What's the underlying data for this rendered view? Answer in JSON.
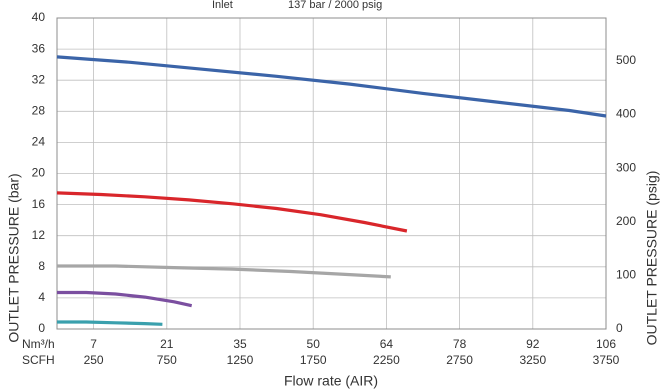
{
  "header": {
    "inlet_label": "Inlet",
    "inlet_value": "137 bar / 2000 psig"
  },
  "chart_data": {
    "type": "line",
    "title": "",
    "xlabel": "Flow rate (AIR)",
    "ylabel_left": "OUTLET PRESSURE (bar)",
    "ylabel_right": "OUTLET PRESSURE (psig)",
    "grid": true,
    "x_unit_labels": [
      "Nm³/h",
      "SCFH"
    ],
    "x_ticks_nm3h": [
      "7",
      "21",
      "35",
      "50",
      "64",
      "78",
      "92",
      "106"
    ],
    "x_ticks_scfh": [
      "250",
      "750",
      "1250",
      "1750",
      "2250",
      "2750",
      "3250",
      "3750"
    ],
    "xlim": [
      0,
      3750
    ],
    "ylim_left": [
      0,
      40
    ],
    "y_ticks_left": [
      0,
      4,
      8,
      12,
      16,
      20,
      24,
      28,
      32,
      36,
      40
    ],
    "ylim_right_psig": [
      0,
      580
    ],
    "y_ticks_right": [
      0,
      100,
      200,
      300,
      400,
      500
    ],
    "series": [
      {
        "color": "#3b64a8",
        "x": [
          0,
          500,
          1000,
          1500,
          2000,
          2500,
          3000,
          3500,
          3750
        ],
        "values": [
          35.0,
          34.3,
          33.4,
          32.5,
          31.5,
          30.3,
          29.2,
          28.1,
          27.4
        ]
      },
      {
        "color": "#d9262b",
        "x": [
          0,
          300,
          600,
          900,
          1200,
          1500,
          1800,
          2100,
          2390
        ],
        "values": [
          17.5,
          17.3,
          17.0,
          16.6,
          16.1,
          15.5,
          14.7,
          13.7,
          12.6
        ]
      },
      {
        "color": "#a6a6a6",
        "x": [
          0,
          400,
          800,
          1200,
          1600,
          2000,
          2280
        ],
        "values": [
          8.1,
          8.1,
          7.9,
          7.7,
          7.4,
          7.0,
          6.7
        ]
      },
      {
        "color": "#7b4fa0",
        "x": [
          0,
          200,
          400,
          600,
          800,
          920
        ],
        "values": [
          4.7,
          4.7,
          4.5,
          4.1,
          3.5,
          3.0
        ]
      },
      {
        "color": "#3aa0ad",
        "x": [
          0,
          200,
          400,
          600,
          720
        ],
        "values": [
          0.9,
          0.9,
          0.8,
          0.7,
          0.6
        ]
      }
    ]
  }
}
